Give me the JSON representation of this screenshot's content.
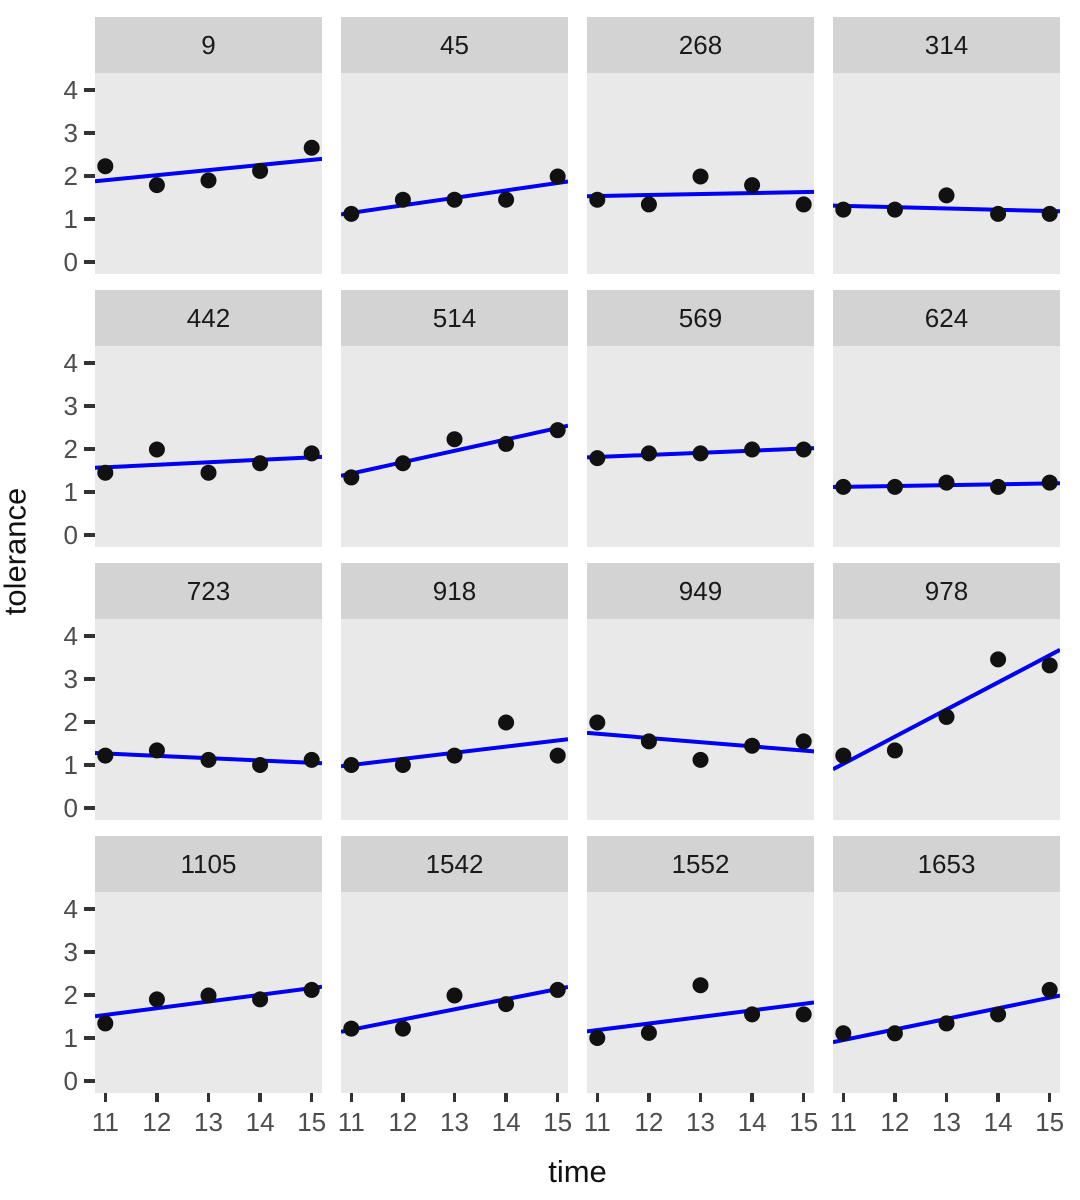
{
  "figure": {
    "xlabel": "time",
    "ylabel": "tolerance"
  },
  "colors": {
    "background": "#ffffff",
    "strip_bg": "#d3d3d3",
    "strip_text": "#1a1a1a",
    "panel_bg": "#e9e9e9",
    "point": "#111111",
    "trend_line": "#0000f5",
    "tick_text": "#4d4d4d",
    "tick_mark": "#333333"
  },
  "chart_data": {
    "type": "scatter",
    "title": "",
    "xlabel": "time",
    "ylabel": "tolerance",
    "facet_variable": "id",
    "facet_layout": {
      "rows": 4,
      "cols": 4
    },
    "x": [
      11,
      12,
      13,
      14,
      15
    ],
    "x_ticks": [
      "11",
      "12",
      "13",
      "14",
      "15"
    ],
    "y_ticks": [
      "0",
      "1",
      "2",
      "3",
      "4"
    ],
    "xlim": [
      10.8,
      15.2
    ],
    "ylim": [
      -0.28,
      4.4
    ],
    "grid": false,
    "legend": "none",
    "smoother": "linear-fit-per-facet-full-range",
    "facets": [
      {
        "id": "9",
        "values": [
          2.23,
          1.79,
          1.9,
          2.12,
          2.66
        ]
      },
      {
        "id": "45",
        "values": [
          1.12,
          1.45,
          1.45,
          1.45,
          1.99
        ]
      },
      {
        "id": "268",
        "values": [
          1.45,
          1.34,
          1.99,
          1.79,
          1.34
        ]
      },
      {
        "id": "314",
        "values": [
          1.22,
          1.22,
          1.55,
          1.12,
          1.12
        ]
      },
      {
        "id": "442",
        "values": [
          1.45,
          1.99,
          1.45,
          1.67,
          1.9
        ]
      },
      {
        "id": "514",
        "values": [
          1.34,
          1.67,
          2.23,
          2.12,
          2.44
        ]
      },
      {
        "id": "569",
        "values": [
          1.79,
          1.9,
          1.9,
          1.99,
          1.99
        ]
      },
      {
        "id": "624",
        "values": [
          1.12,
          1.12,
          1.22,
          1.12,
          1.22
        ]
      },
      {
        "id": "723",
        "values": [
          1.22,
          1.34,
          1.12,
          1.0,
          1.12
        ]
      },
      {
        "id": "918",
        "values": [
          1.0,
          1.0,
          1.22,
          1.99,
          1.22
        ]
      },
      {
        "id": "949",
        "values": [
          1.99,
          1.55,
          1.12,
          1.45,
          1.55
        ]
      },
      {
        "id": "978",
        "values": [
          1.22,
          1.34,
          2.12,
          3.46,
          3.32
        ]
      },
      {
        "id": "1105",
        "values": [
          1.34,
          1.9,
          1.99,
          1.9,
          2.12
        ]
      },
      {
        "id": "1542",
        "values": [
          1.22,
          1.22,
          1.99,
          1.79,
          2.12
        ]
      },
      {
        "id": "1552",
        "values": [
          1.0,
          1.12,
          2.23,
          1.55,
          1.55
        ]
      },
      {
        "id": "1653",
        "values": [
          1.11,
          1.11,
          1.34,
          1.55,
          2.12
        ]
      }
    ]
  }
}
